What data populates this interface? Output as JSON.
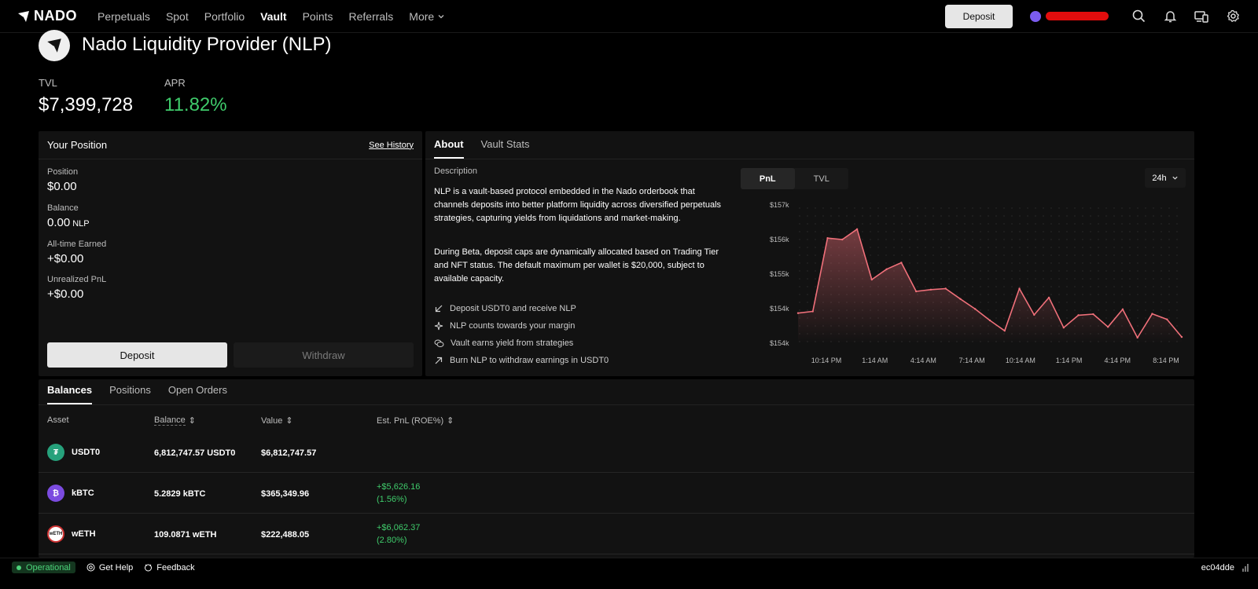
{
  "nav": {
    "brand": "NADO",
    "items": [
      {
        "label": "Perpetuals",
        "active": false
      },
      {
        "label": "Spot",
        "active": false
      },
      {
        "label": "Portfolio",
        "active": false
      },
      {
        "label": "Vault",
        "active": true
      },
      {
        "label": "Points",
        "active": false
      },
      {
        "label": "Referrals",
        "active": false
      }
    ],
    "more_label": "More",
    "deposit_label": "Deposit",
    "icons": [
      "search-icon",
      "bell-icon",
      "devices-icon",
      "gear-icon"
    ]
  },
  "vault": {
    "title": "Nado Liquidity Provider (NLP)",
    "tvl_label": "TVL",
    "tvl_value": "$7,399,728",
    "apr_label": "APR",
    "apr_value": "11.82%"
  },
  "position": {
    "title": "Your Position",
    "history_link": "See History",
    "position_label": "Position",
    "position_value": "$0.00",
    "balance_label": "Balance",
    "balance_value": "0.00",
    "balance_unit": "NLP",
    "earned_label": "All-time Earned",
    "earned_value": "+$0.00",
    "unrealized_label": "Unrealized PnL",
    "unrealized_value": "+$0.00",
    "deposit_label": "Deposit",
    "withdraw_label": "Withdraw"
  },
  "about": {
    "tabs": [
      "About",
      "Vault Stats"
    ],
    "description_label": "Description",
    "paragraph1": "NLP is a vault-based protocol embedded in the Nado orderbook that channels deposits into better platform liquidity across diversified perpetuals strategies, capturing yields from liquidations and market-making.",
    "paragraph2": "During Beta, deposit caps are dynamically allocated based on Trading Tier and NFT status. The default maximum per wallet is $20,000, subject to available capacity.",
    "features": [
      {
        "icon": "arrow-down-left-icon",
        "text": "Deposit USDT0 and receive NLP"
      },
      {
        "icon": "sparkle-icon",
        "text": "NLP counts towards your margin"
      },
      {
        "icon": "coins-icon",
        "text": "Vault earns yield from strategies"
      },
      {
        "icon": "arrow-up-right-icon",
        "text": "Burn NLP to withdraw earnings in USDT0"
      }
    ],
    "chart_toggle": [
      "PnL",
      "TVL"
    ],
    "range": "24h"
  },
  "chart_data": {
    "type": "area",
    "y_tick_labels": [
      "$157k",
      "$156k",
      "$155k",
      "$154k",
      "$154k"
    ],
    "x_tick_labels": [
      "10:14 PM",
      "1:14 AM",
      "4:14 AM",
      "7:14 AM",
      "10:14 AM",
      "1:14 PM",
      "4:14 PM",
      "8:14 PM"
    ],
    "ylim": [
      153700,
      157700
    ],
    "values": [
      154570,
      154620,
      156740,
      156700,
      157000,
      155540,
      155840,
      156030,
      155200,
      155250,
      155280,
      154980,
      154690,
      154360,
      154060,
      155280,
      154520,
      155020,
      154150,
      154510,
      154540,
      154170,
      154680,
      153860,
      154550,
      154390,
      153880
    ],
    "line_color": "#f0707a",
    "grid": true,
    "legend": "none"
  },
  "balances": {
    "tabs": [
      "Balances",
      "Positions",
      "Open Orders"
    ],
    "headers": {
      "asset": "Asset",
      "balance": "Balance",
      "value": "Value",
      "pnl": "Est. PnL (ROE%)"
    },
    "rows": [
      {
        "asset": "USDT0",
        "balance": "6,812,747.57 USDT0",
        "value": "$6,812,747.57",
        "pnl": "",
        "roe": "",
        "coin_color": "#26a17b"
      },
      {
        "asset": "kBTC",
        "balance": "5.2829 kBTC",
        "value": "$365,349.96",
        "pnl": "+$5,626.16",
        "roe": "(1.56%)",
        "coin_color": "#7b4be0"
      },
      {
        "asset": "wETH",
        "balance": "109.0871 wETH",
        "value": "$222,488.05",
        "pnl": "+$6,062.37",
        "roe": "(2.80%)",
        "coin_color": "#ffffff"
      }
    ]
  },
  "footer": {
    "status": "Operational",
    "help": "Get Help",
    "feedback": "Feedback",
    "build": "ec04dde"
  }
}
